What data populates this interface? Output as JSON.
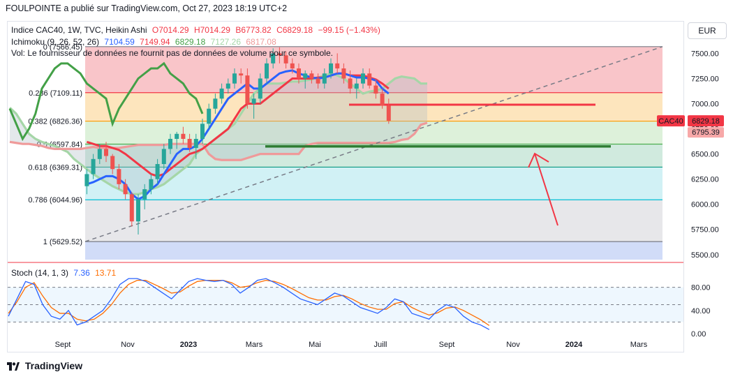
{
  "header": {
    "text": "FOULPOINTE a publié sur TradingView.com, Oct 27, 2023 18:19 UTC+2"
  },
  "legend": {
    "symbol": "Indice CAC40, 1W, TVC, Heikin Ashi",
    "ohlc": {
      "o": "O7014.29",
      "h": "H7014.29",
      "b": "B6773.82",
      "c": "C6829.18",
      "chg": "−99.15 (−1.43%)"
    },
    "ichimoku_label": "Ichimoku (9, 26, 52, 26)",
    "ichimoku_values": [
      "7104.59",
      "7149.94",
      "6829.18",
      "7127.26",
      "6817.08"
    ],
    "volume_note": "Vol: Le fournisseur de données ne fournit pas de données de volume pour ce symbole."
  },
  "currency": "EUR",
  "stoch": {
    "label": "Stoch (14, 1, 3)",
    "k": "7.36",
    "d": "13.71"
  },
  "footer": {
    "brand": "TradingView"
  },
  "colors": {
    "up": "#26a69a",
    "down": "#ef5350",
    "tenkan": "#2962ff",
    "kijun": "#f23645",
    "chikou": "#43a047",
    "span_a": "#a5d6a7",
    "span_b": "#ef9a9a",
    "stoch_k": "#2962ff",
    "stoch_d": "#ff6d00"
  },
  "chart_data": [
    {
      "type": "candlestick",
      "title": "",
      "price_axis": [
        "7500.00",
        "7250.00",
        "7000.00",
        "6750.00",
        "6500.00",
        "6250.00",
        "6000.00",
        "5750.00",
        "5500.00"
      ],
      "ylim": [
        5450,
        7600
      ],
      "time_axis": [
        "Sept",
        "Nov",
        "2023",
        "Mars",
        "Mai",
        "Juill",
        "Sept",
        "Nov",
        "2024",
        "Mars"
      ],
      "last_price": {
        "label": "CAC40",
        "value": "6829.18",
        "secondary": "6795.39"
      },
      "fibonacci": [
        {
          "label": "0 (7566.45)",
          "level": 7566.45,
          "band": "#f8bbbf"
        },
        {
          "label": "0.236 (7109.11)",
          "level": 7109.11,
          "band": "#fde0b2",
          "line": "#f23645"
        },
        {
          "label": "0.382 (6826.36)",
          "level": 6826.36,
          "band": "#d7efd3",
          "line": "#ff9800"
        },
        {
          "label": "0.5 (6597.84)",
          "level": 6597.84,
          "band": "#c8e6d8",
          "line": "#4caf50"
        },
        {
          "label": "0.618 (6369.31)",
          "level": 6369.31,
          "band": "#c9eef3",
          "line": "#089981"
        },
        {
          "label": "0.786 (6044.96)",
          "level": 6044.96,
          "band": "#e3e3e6",
          "line": "#00bcd4"
        },
        {
          "label": "1 (5629.52)",
          "level": 5629.52,
          "band": "#c9d6f7",
          "line": "#787b86"
        }
      ],
      "candles": [
        [
          6180,
          6350,
          6100,
          6300
        ],
        [
          6300,
          6500,
          6250,
          6450
        ],
        [
          6450,
          6600,
          6400,
          6550
        ],
        [
          6550,
          6620,
          6420,
          6480
        ],
        [
          6480,
          6500,
          6300,
          6350
        ],
        [
          6350,
          6400,
          6150,
          6200
        ],
        [
          6200,
          6250,
          6050,
          6100
        ],
        [
          6100,
          6120,
          5780,
          5830
        ],
        [
          5830,
          6100,
          5700,
          6050
        ],
        [
          6050,
          6200,
          5950,
          6150
        ],
        [
          6150,
          6300,
          6100,
          6250
        ],
        [
          6250,
          6450,
          6200,
          6400
        ],
        [
          6400,
          6600,
          6350,
          6550
        ],
        [
          6550,
          6700,
          6500,
          6650
        ],
        [
          6650,
          6720,
          6550,
          6700
        ],
        [
          6700,
          6770,
          6600,
          6650
        ],
        [
          6650,
          6700,
          6520,
          6560
        ],
        [
          6560,
          6700,
          6450,
          6650
        ],
        [
          6650,
          6850,
          6600,
          6800
        ],
        [
          6800,
          7000,
          6750,
          6950
        ],
        [
          6950,
          7100,
          6900,
          7050
        ],
        [
          7050,
          7200,
          7000,
          7150
        ],
        [
          7150,
          7250,
          7100,
          7200
        ],
        [
          7200,
          7350,
          7150,
          7300
        ],
        [
          7300,
          7350,
          7200,
          7280
        ],
        [
          7280,
          7350,
          6950,
          7000
        ],
        [
          7000,
          7100,
          6850,
          7050
        ],
        [
          7050,
          7300,
          7000,
          7250
        ],
        [
          7250,
          7450,
          7200,
          7400
        ],
        [
          7400,
          7550,
          7350,
          7500
        ],
        [
          7500,
          7560,
          7400,
          7480
        ],
        [
          7480,
          7520,
          7350,
          7400
        ],
        [
          7400,
          7450,
          7300,
          7350
        ],
        [
          7350,
          7400,
          7200,
          7250
        ],
        [
          7250,
          7330,
          7150,
          7300
        ],
        [
          7300,
          7330,
          7200,
          7250
        ],
        [
          7250,
          7300,
          7150,
          7200
        ],
        [
          7200,
          7350,
          7150,
          7300
        ],
        [
          7300,
          7450,
          7250,
          7400
        ],
        [
          7400,
          7500,
          7300,
          7350
        ],
        [
          7350,
          7400,
          7200,
          7250
        ],
        [
          7250,
          7330,
          7100,
          7150
        ],
        [
          7150,
          7250,
          7050,
          7200
        ],
        [
          7200,
          7350,
          7150,
          7300
        ],
        [
          7300,
          7350,
          7150,
          7180
        ],
        [
          7180,
          7250,
          7050,
          7100
        ],
        [
          7100,
          7150,
          6950,
          6980
        ],
        [
          6980,
          7050,
          6800,
          6830
        ]
      ],
      "tenkan": [
        6200,
        6220,
        6250,
        6280,
        6280,
        6250,
        6200,
        6100,
        6050,
        6080,
        6150,
        6200,
        6300,
        6400,
        6500,
        6550,
        6550,
        6580,
        6650,
        6750,
        6850,
        6950,
        7050,
        7100,
        7150,
        7200,
        7150,
        7150,
        7200,
        7250,
        7300,
        7320,
        7330,
        7300,
        7280,
        7260,
        7250,
        7260,
        7280,
        7300,
        7300,
        7280,
        7260,
        7260,
        7250,
        7230,
        7150,
        7100
      ],
      "kijun": [
        6620,
        6600,
        6580,
        6580,
        6560,
        6540,
        6500,
        6450,
        6400,
        6350,
        6300,
        6280,
        6300,
        6350,
        6400,
        6450,
        6500,
        6520,
        6550,
        6600,
        6650,
        6700,
        6750,
        6850,
        6950,
        7000,
        7000,
        7000,
        7050,
        7100,
        7150,
        7200,
        7250,
        7250,
        7250,
        7250,
        7260,
        7260,
        7280,
        7300,
        7300,
        7280,
        7280,
        7280,
        7260,
        7240,
        7200,
        7150
      ],
      "chikou": [
        6950,
        6800,
        6650,
        6750,
        6900,
        7150,
        7250,
        7350,
        7400,
        7400,
        7350,
        7300,
        7200,
        7150,
        7100,
        7050,
        6800,
        6950,
        7050,
        7150,
        7250,
        7300,
        7350,
        7350,
        7400,
        7300,
        7250,
        7200,
        7100,
        7050,
        6900
      ],
      "span_a": [
        6960,
        6900,
        6800,
        6700,
        6650,
        6620,
        6600,
        6580,
        6550,
        6520,
        6450,
        6400,
        6350,
        6300,
        6260,
        6220,
        6180,
        6150,
        6120,
        6100,
        6100,
        6120,
        6150,
        6170,
        6200,
        6250,
        6300,
        6350,
        6400,
        6500,
        6550,
        6600,
        6650,
        6700,
        6750,
        6800,
        6900,
        7000,
        7100,
        7150,
        7200,
        7200,
        7200,
        7210,
        7220,
        7220,
        7230,
        7240,
        7260,
        7280,
        7300,
        7280,
        7250,
        7200,
        7150,
        7100,
        7120,
        7130,
        7150,
        7200,
        7250,
        7270,
        7260,
        7250,
        7200,
        7200
      ],
      "span_b": [
        6620,
        6610,
        6600,
        6600,
        6590,
        6580,
        6560,
        6550,
        6550,
        6550,
        6550,
        6550,
        6560,
        6570,
        6560,
        6560,
        6560,
        6560,
        6570,
        6580,
        6590,
        6590,
        6590,
        6590,
        6590,
        6600,
        6600,
        6600,
        6600,
        6600,
        6600,
        6500,
        6450,
        6440,
        6440,
        6440,
        6440,
        6460,
        6480,
        6500,
        6500,
        6500,
        6500,
        6500,
        6500,
        6500,
        6580,
        6600,
        6610,
        6610,
        6610,
        6610,
        6610,
        6610,
        6610,
        6610,
        6610,
        6610,
        6610,
        6610,
        6620,
        6640,
        6650,
        6700,
        6790,
        6810
      ],
      "annotations": [
        {
          "type": "horizontal-ray",
          "price": 6990,
          "color": "#f23645"
        },
        {
          "type": "horizontal-ray",
          "price": 6575,
          "color": "#2e7d32"
        },
        {
          "type": "trend-dashed",
          "from": [
            5629.52,
            0
          ],
          "to": [
            7566.45,
            1
          ]
        },
        {
          "type": "arrow",
          "color": "#f23645"
        }
      ]
    },
    {
      "type": "line",
      "title": "",
      "series_names": [],
      "y_axis": [
        "80.00",
        "40.00",
        "0.00"
      ],
      "ylim": [
        0,
        100
      ],
      "levels": [
        80,
        50,
        20
      ],
      "k": [
        30,
        60,
        90,
        85,
        50,
        30,
        25,
        40,
        15,
        20,
        30,
        40,
        60,
        85,
        95,
        95,
        90,
        80,
        70,
        60,
        75,
        90,
        95,
        92,
        90,
        92,
        85,
        70,
        80,
        92,
        95,
        88,
        80,
        70,
        60,
        55,
        50,
        60,
        70,
        65,
        55,
        45,
        40,
        35,
        45,
        60,
        55,
        35,
        30,
        25,
        40,
        50,
        45,
        30,
        20,
        15,
        7
      ],
      "d": [
        35,
        55,
        80,
        88,
        65,
        45,
        35,
        35,
        25,
        22,
        25,
        35,
        50,
        70,
        85,
        92,
        92,
        85,
        78,
        70,
        72,
        82,
        90,
        92,
        92,
        92,
        88,
        80,
        82,
        88,
        92,
        90,
        85,
        78,
        70,
        62,
        58,
        58,
        64,
        66,
        60,
        52,
        46,
        42,
        42,
        52,
        55,
        45,
        38,
        32,
        36,
        44,
        46,
        40,
        32,
        24,
        14
      ]
    }
  ]
}
